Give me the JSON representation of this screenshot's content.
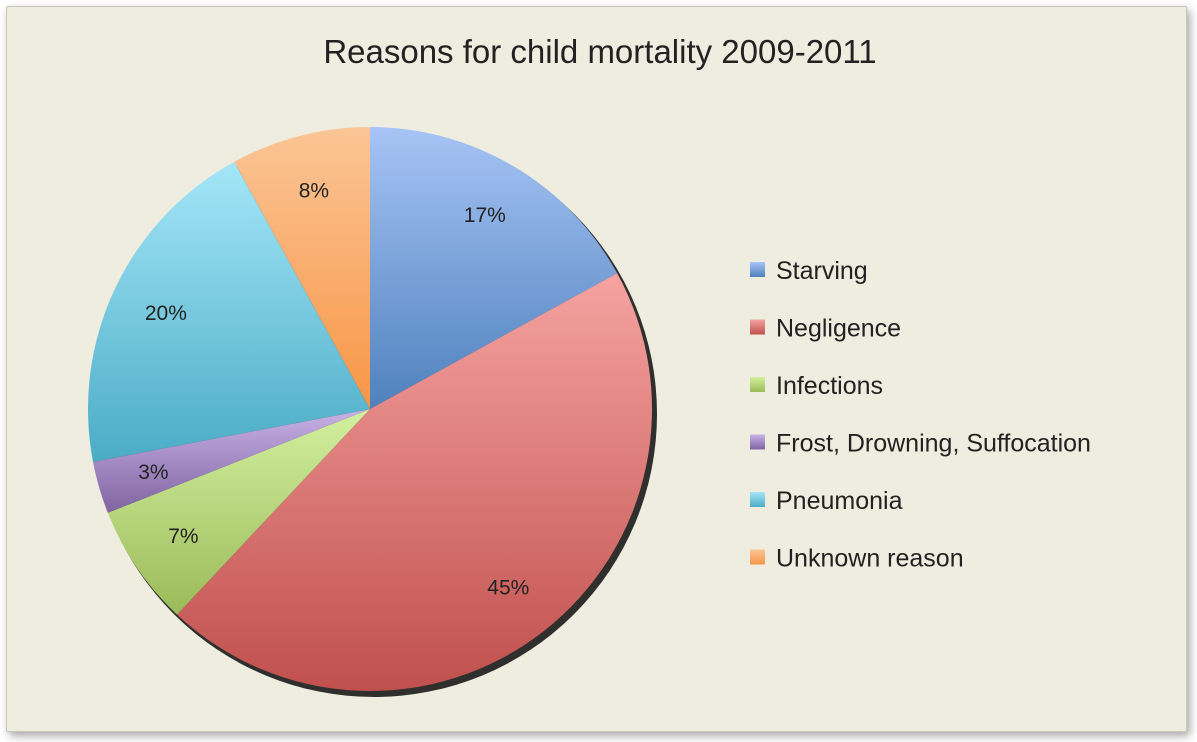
{
  "chart_data": {
    "type": "pie",
    "title": "Reasons for child mortality 2009-2011",
    "slices": [
      {
        "label": "Starving",
        "value": 17,
        "display": "17%",
        "color": "#4f81bd",
        "light": "#a7c4f5"
      },
      {
        "label": "Negligence",
        "value": 45,
        "display": "45%",
        "color": "#c0504d",
        "light": "#f5a3a1"
      },
      {
        "label": "Infections",
        "value": 7,
        "display": "7%",
        "color": "#9bbb59",
        "light": "#d3f0a0"
      },
      {
        "label": "Frost, Drowning, Suffocation",
        "value": 3,
        "display": "3%",
        "color": "#8064a2",
        "light": "#c8b2e6"
      },
      {
        "label": "Pneumonia",
        "value": 20,
        "display": "20%",
        "color": "#4bacc6",
        "light": "#a4e6f8"
      },
      {
        "label": "Unknown reason",
        "value": 8,
        "display": "8%",
        "color": "#f79646",
        "light": "#fbc596"
      }
    ],
    "legend_position": "right",
    "start_angle": "12 o'clock",
    "direction": "clockwise"
  }
}
